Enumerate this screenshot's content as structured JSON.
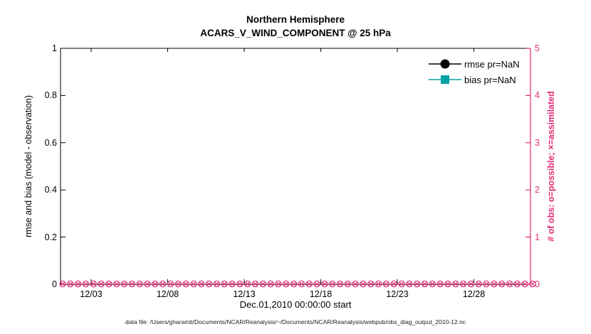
{
  "title": {
    "line1": "Northern Hemisphere",
    "line2": "ACARS_V_WIND_COMPONENT @ 25 hPa"
  },
  "left_axis": {
    "label": "rmse and bias (model - observation)",
    "ticks": [
      "0",
      "0.2",
      "0.4",
      "0.6",
      "0.8",
      "1"
    ],
    "min": 0,
    "max": 1
  },
  "right_axis": {
    "label": "# of obs: o=possible; ×=assimilated",
    "ticks": [
      "0",
      "1",
      "2",
      "3",
      "4",
      "5"
    ],
    "min": 0,
    "max": 5
  },
  "x_axis": {
    "ticks": [
      "12/03",
      "12/08",
      "12/13",
      "12/18",
      "12/23",
      "12/28"
    ],
    "label": "Dec.01,2010 00:00:00 start"
  },
  "legend": {
    "items": [
      {
        "label": "rmse pr=NaN",
        "color": "#000000",
        "marker": "circle"
      },
      {
        "label": "bias pr=NaN",
        "color": "#00a2a2",
        "marker": "square"
      }
    ]
  },
  "footer": "data file: /Users/gharamti/Documents/NCAR/Reanalysis/~/Documents/NCAR/Reanalysis/webpub/obs_diag_output_2010-12.nc",
  "colors": {
    "accent": "#e22a76",
    "rmse": "#000000",
    "bias": "#00a2a2",
    "axis": "#000000"
  },
  "chart_data": {
    "type": "line",
    "title": "Northern Hemisphere — ACARS_V_WIND_COMPONENT @ 25 hPa",
    "xlabel": "Dec.01,2010 00:00:00 start",
    "ylabel_left": "rmse and bias (model - observation)",
    "ylabel_right": "# of obs: o=possible; ×=assimilated",
    "ylim_left": [
      0,
      1
    ],
    "ylim_right": [
      0,
      5
    ],
    "x_tick_labels": [
      "12/03",
      "12/08",
      "12/13",
      "12/18",
      "12/23",
      "12/28"
    ],
    "x_range": "Dec 01 2010 through Dec 31 2010",
    "grid": false,
    "legend_position": "top-right-inside",
    "series": [
      {
        "name": "rmse pr=NaN",
        "axis": "left",
        "marker": "filled-circle",
        "color": "#000000",
        "values": "NaN (nothing plotted)"
      },
      {
        "name": "bias pr=NaN",
        "axis": "left",
        "marker": "filled-square",
        "color": "#00a2a2",
        "values": "NaN (nothing plotted)"
      },
      {
        "name": "# of obs possible (o)",
        "axis": "right",
        "marker": "o",
        "color": "#e22a76",
        "value_constant": 0
      },
      {
        "name": "# of obs assimilated (×)",
        "axis": "right",
        "marker": "×",
        "color": "#e22a76",
        "value_constant": 0
      }
    ],
    "obs_marker_count": 62
  }
}
